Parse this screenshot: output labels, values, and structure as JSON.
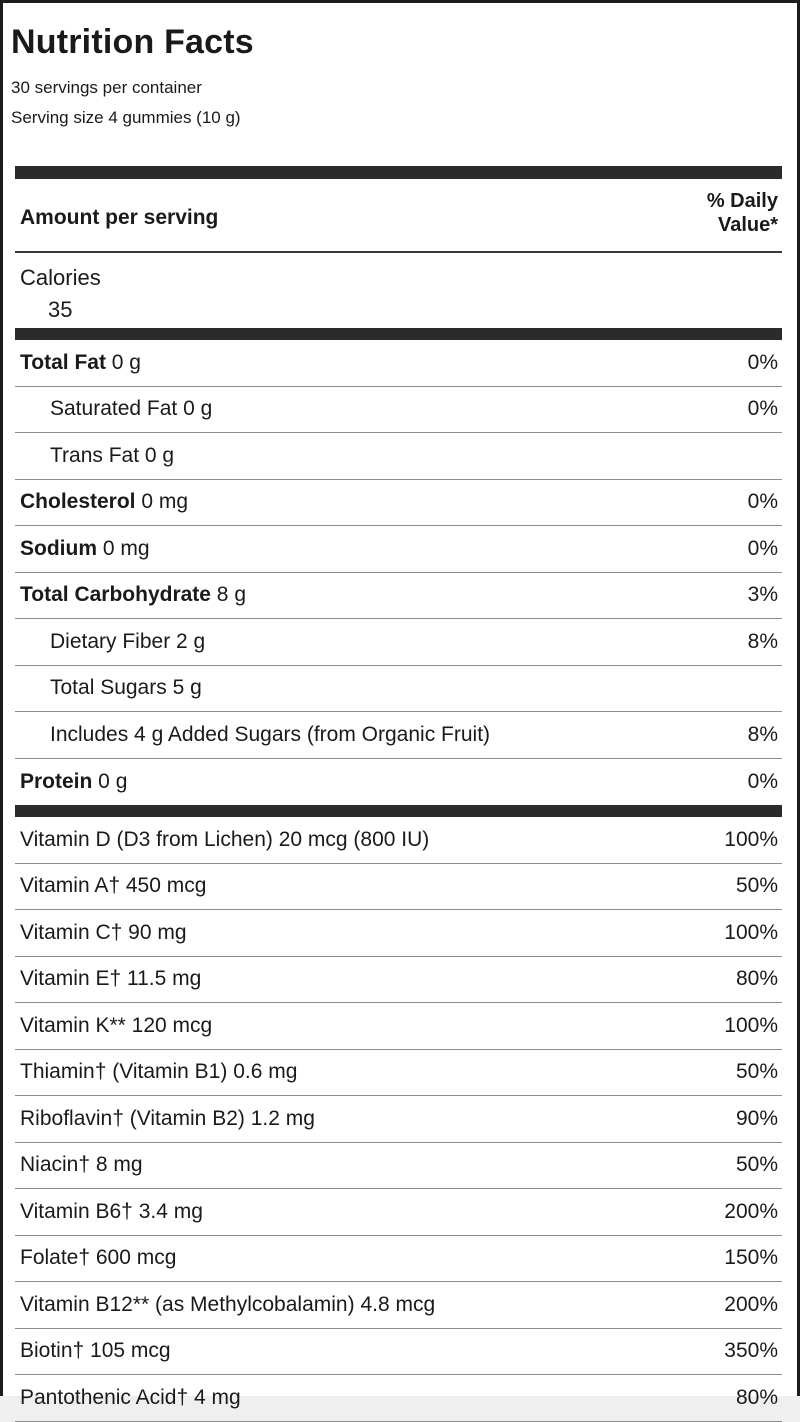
{
  "label": {
    "title": "Nutrition Facts",
    "servings_per_container": "30 servings per container",
    "serving_size": "Serving size 4 gummies (10 g)",
    "amount_per_serving": "Amount per serving",
    "daily_value_header_line1": "% Daily",
    "daily_value_header_line2": "Value*",
    "calories_label": "Calories",
    "calories_value": "35"
  },
  "colors": {
    "text": "#1a1a1a",
    "bar": "#2b2b2b",
    "separator": "#8c8c8c",
    "border": "#1c1c1c",
    "background": "#ffffff"
  },
  "rows": [
    {
      "name": "Total Fat",
      "amount": "0 g",
      "dv": "0%",
      "bold": true,
      "indent": 0
    },
    {
      "name": "Saturated Fat",
      "amount": "0 g",
      "dv": "0%",
      "bold": false,
      "indent": 1
    },
    {
      "name": "Trans Fat",
      "amount": "0 g",
      "dv": "",
      "bold": false,
      "indent": 1
    },
    {
      "name": "Cholesterol",
      "amount": "0 mg",
      "dv": "0%",
      "bold": true,
      "indent": 0
    },
    {
      "name": "Sodium",
      "amount": "0 mg",
      "dv": "0%",
      "bold": true,
      "indent": 0
    },
    {
      "name": "Total Carbohydrate",
      "amount": "8 g",
      "dv": "3%",
      "bold": true,
      "indent": 0
    },
    {
      "name": "Dietary Fiber",
      "amount": "2 g",
      "dv": "8%",
      "bold": false,
      "indent": 1
    },
    {
      "name": "Total Sugars",
      "amount": "5 g",
      "dv": "",
      "bold": false,
      "indent": 1
    },
    {
      "name": "Includes 4 g Added Sugars (from Organic Fruit)",
      "amount": "",
      "dv": "8%",
      "bold": false,
      "indent": 1
    },
    {
      "name": "Protein",
      "amount": "0 g",
      "dv": "0%",
      "bold": true,
      "indent": 0
    }
  ],
  "vitamin_rows": [
    {
      "name": "Vitamin D (D3 from Lichen)",
      "amount": "20 mcg (800 IU)",
      "dv": "100%"
    },
    {
      "name": "Vitamin A†",
      "amount": "450 mcg",
      "dv": "50%"
    },
    {
      "name": "Vitamin C†",
      "amount": "90 mg",
      "dv": "100%"
    },
    {
      "name": "Vitamin E†",
      "amount": "11.5 mg",
      "dv": "80%"
    },
    {
      "name": "Vitamin K**",
      "amount": "120 mcg",
      "dv": "100%"
    },
    {
      "name": "Thiamin† (Vitamin B1)",
      "amount": "0.6 mg",
      "dv": "50%"
    },
    {
      "name": "Riboflavin† (Vitamin B2)",
      "amount": "1.2 mg",
      "dv": "90%"
    },
    {
      "name": "Niacin†",
      "amount": "8 mg",
      "dv": "50%"
    },
    {
      "name": "Vitamin B6†",
      "amount": "3.4 mg",
      "dv": "200%"
    },
    {
      "name": "Folate†",
      "amount": "600 mcg",
      "dv": "150%"
    },
    {
      "name": "Vitamin B12** (as Methylcobalamin)",
      "amount": "4.8 mcg",
      "dv": "200%"
    },
    {
      "name": "Biotin†",
      "amount": "105 mcg",
      "dv": "350%"
    },
    {
      "name": "Pantothenic Acid†",
      "amount": "4 mg",
      "dv": "80%"
    }
  ]
}
